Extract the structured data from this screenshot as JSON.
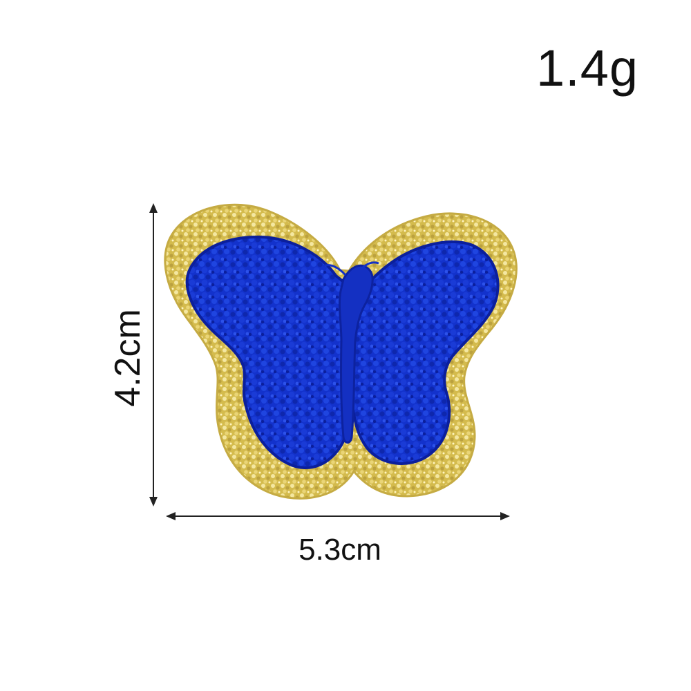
{
  "product": {
    "weight": "1.4g",
    "height": "4.2cm",
    "width": "5.3cm"
  },
  "colors": {
    "background": "#ffffff",
    "text": "#111111",
    "measurement_line": "#222222",
    "patch_blue": "#1230c7",
    "patch_blue_dark": "#0b1f9c",
    "sequin_gold": "#d8c15b",
    "sequin_dark": "#9e8a2e"
  },
  "icons": {
    "vertical_arrow": "double-headed-vertical-arrow",
    "horizontal_arrow": "double-headed-horizontal-arrow",
    "patch": "blue-chenille-butterfly-patch"
  }
}
